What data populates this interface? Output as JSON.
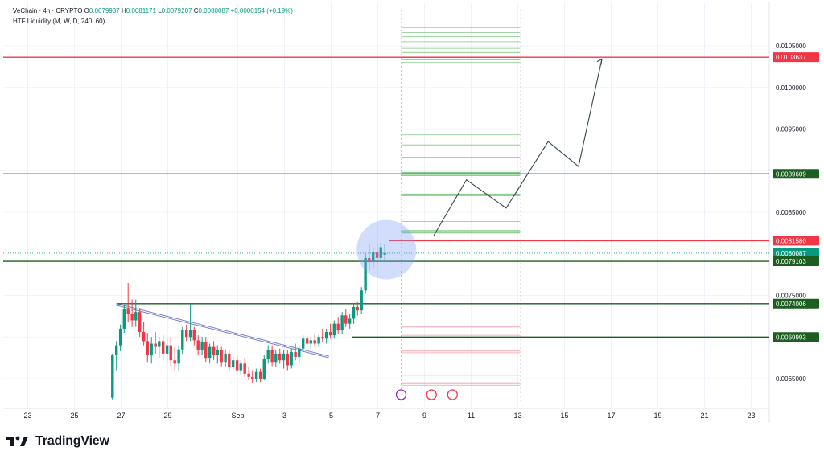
{
  "header": {
    "symbol_line": "VeChain · 4h · CRYPTO",
    "open_label": "O",
    "open": "0.0079937",
    "high_label": "H",
    "high": "0.0081171",
    "low_label": "L",
    "low": "0.0079207",
    "close_label": "C",
    "close": "0.0080087",
    "change": "+0.0000154 (+0.19%)",
    "indicator": "HTF Liquidity (M, W, D, 240, 60)"
  },
  "brand": {
    "name": "TradingView"
  },
  "colors": {
    "up": "#089981",
    "down": "#f23645",
    "bg": "#ffffff",
    "grid": "#f0f3fa",
    "green_line": "#1b5e20",
    "red_line": "#f23645",
    "text": "#131722",
    "circle": "#7b9ff0",
    "trendline": "#5c6bc0"
  },
  "chart_data": {
    "type": "candlestick",
    "title": "VeChain · 4h · CRYPTO",
    "x_ticks": [
      "23",
      "25",
      "27",
      "29",
      "Sep",
      "3",
      "5",
      "7",
      "9",
      "11",
      "13",
      "15",
      "17",
      "19",
      "21",
      "23"
    ],
    "y_ticks": [
      "0.0105000",
      "0.0100000",
      "0.0095000",
      "0.0085000",
      "0.0075000",
      "0.0065000"
    ],
    "ylim": [
      0.0062,
      0.0108
    ],
    "grid": true,
    "price_labels": [
      {
        "value": 0.0103637,
        "text": "0.0103637",
        "color": "#f23645"
      },
      {
        "value": 0.0089609,
        "text": "0.0089609",
        "color": "#1b5e20"
      },
      {
        "value": 0.008158,
        "text": "0.0081580",
        "color": "#f23645"
      },
      {
        "value": 0.0080087,
        "text": "0.0080087",
        "sub": "02:41:21",
        "color": "#089981"
      },
      {
        "value": 0.0079103,
        "text": "0.0079103",
        "color": "#1b5e20"
      },
      {
        "value": 0.0074006,
        "text": "0.0074006",
        "color": "#1b5e20"
      },
      {
        "value": 0.0069993,
        "text": "0.0069993",
        "color": "#1b5e20"
      }
    ],
    "horizontal_levels": [
      {
        "value": 0.0103637,
        "color": "#f23645",
        "from_day": 22.9,
        "to_day": 26.5
      },
      {
        "value": 0.0089609,
        "color": "#1b5e20",
        "from_day": 22.9,
        "to_day": 26.5
      },
      {
        "value": 0.008158,
        "color": "#f23645",
        "from_day": 8.7,
        "to_day": 26.5
      },
      {
        "value": 0.0079103,
        "color": "#1b5e20",
        "from_day": 22.9,
        "to_day": 26.5
      },
      {
        "value": 0.0074006,
        "color": "#1b5e20",
        "from_day": 26.8,
        "to_day": 26.5
      },
      {
        "value": 0.0069993,
        "color": "#1b5e20",
        "from_day": 7.0,
        "to_day": 26.5
      }
    ],
    "liquidity_green": [
      0.01072,
      0.01066,
      0.01061,
      0.01055,
      0.01047,
      0.01042,
      0.01039,
      0.01036,
      0.01033,
      0.0103,
      0.00943,
      0.00931,
      0.00916,
      0.00898,
      0.00896,
      0.00894,
      0.00872,
      0.0087,
      0.00839,
      0.00828,
      0.00825
    ],
    "liquidity_red": [
      0.00718,
      0.00712,
      0.00702,
      0.00694,
      0.00683,
      0.00681,
      0.00654,
      0.00645,
      0.00644,
      0.00642
    ],
    "trendline": {
      "start_day": 26.8,
      "start": 0.00739,
      "end_day": 4.9,
      "end": 0.00676
    },
    "projection": [
      {
        "day": 9.4,
        "value": 0.00822
      },
      {
        "day": 10.8,
        "value": 0.00889
      },
      {
        "day": 12.5,
        "value": 0.00855
      },
      {
        "day": 14.3,
        "value": 0.00935
      },
      {
        "day": 15.6,
        "value": 0.00905
      },
      {
        "day": 16.6,
        "value": 0.01034
      }
    ],
    "candles": [
      {
        "day": 26.63,
        "o": 0.00627,
        "h": 0.0068,
        "l": 0.00625,
        "c": 0.00678
      },
      {
        "day": 26.8,
        "o": 0.00678,
        "h": 0.00695,
        "l": 0.0066,
        "c": 0.0069
      },
      {
        "day": 26.97,
        "o": 0.0069,
        "h": 0.00715,
        "l": 0.00683,
        "c": 0.0071
      },
      {
        "day": 27.13,
        "o": 0.0071,
        "h": 0.00738,
        "l": 0.00705,
        "c": 0.00733
      },
      {
        "day": 27.3,
        "o": 0.00733,
        "h": 0.00765,
        "l": 0.00718,
        "c": 0.00728
      },
      {
        "day": 27.47,
        "o": 0.00728,
        "h": 0.00745,
        "l": 0.00712,
        "c": 0.0072
      },
      {
        "day": 27.63,
        "o": 0.0072,
        "h": 0.00745,
        "l": 0.00712,
        "c": 0.0073
      },
      {
        "day": 27.8,
        "o": 0.0073,
        "h": 0.00735,
        "l": 0.007,
        "c": 0.00706
      },
      {
        "day": 27.97,
        "o": 0.00706,
        "h": 0.00718,
        "l": 0.0069,
        "c": 0.00695
      },
      {
        "day": 28.13,
        "o": 0.00695,
        "h": 0.00705,
        "l": 0.0067,
        "c": 0.00678
      },
      {
        "day": 28.3,
        "o": 0.00678,
        "h": 0.007,
        "l": 0.00668,
        "c": 0.00692
      },
      {
        "day": 28.47,
        "o": 0.00692,
        "h": 0.00706,
        "l": 0.0068,
        "c": 0.00688
      },
      {
        "day": 28.63,
        "o": 0.00688,
        "h": 0.007,
        "l": 0.00675,
        "c": 0.00695
      },
      {
        "day": 28.8,
        "o": 0.00695,
        "h": 0.00702,
        "l": 0.00672,
        "c": 0.0068
      },
      {
        "day": 28.97,
        "o": 0.0068,
        "h": 0.00698,
        "l": 0.0067,
        "c": 0.0069
      },
      {
        "day": 29.13,
        "o": 0.0069,
        "h": 0.007,
        "l": 0.00665,
        "c": 0.00672
      },
      {
        "day": 29.3,
        "o": 0.00672,
        "h": 0.00688,
        "l": 0.0066,
        "c": 0.00668
      },
      {
        "day": 29.47,
        "o": 0.00668,
        "h": 0.0069,
        "l": 0.0066,
        "c": 0.00685
      },
      {
        "day": 29.63,
        "o": 0.00685,
        "h": 0.00712,
        "l": 0.0068,
        "c": 0.00708
      },
      {
        "day": 29.8,
        "o": 0.00708,
        "h": 0.00715,
        "l": 0.00695,
        "c": 0.007
      },
      {
        "day": 29.97,
        "o": 0.007,
        "h": 0.0074,
        "l": 0.00695,
        "c": 0.00708
      },
      {
        "day": 30.13,
        "o": 0.00708,
        "h": 0.00712,
        "l": 0.0069,
        "c": 0.00696
      },
      {
        "day": 30.3,
        "o": 0.00696,
        "h": 0.00702,
        "l": 0.00678,
        "c": 0.00684
      },
      {
        "day": 30.47,
        "o": 0.00684,
        "h": 0.007,
        "l": 0.00678,
        "c": 0.00694
      },
      {
        "day": 30.63,
        "o": 0.00694,
        "h": 0.007,
        "l": 0.0067,
        "c": 0.00675
      },
      {
        "day": 30.8,
        "o": 0.00675,
        "h": 0.00692,
        "l": 0.00668,
        "c": 0.00688
      },
      {
        "day": 30.97,
        "o": 0.00688,
        "h": 0.00695,
        "l": 0.00672,
        "c": 0.00678
      },
      {
        "day": 31.13,
        "o": 0.00678,
        "h": 0.0069,
        "l": 0.00668,
        "c": 0.00684
      },
      {
        "day": 31.3,
        "o": 0.00684,
        "h": 0.00688,
        "l": 0.00665,
        "c": 0.0067
      },
      {
        "day": 31.47,
        "o": 0.0067,
        "h": 0.00685,
        "l": 0.00664,
        "c": 0.0068
      },
      {
        "day": 31.63,
        "o": 0.0068,
        "h": 0.00684,
        "l": 0.0066,
        "c": 0.00664
      },
      {
        "day": 31.8,
        "o": 0.00664,
        "h": 0.00676,
        "l": 0.0066,
        "c": 0.00672
      },
      {
        "day": 31.97,
        "o": 0.00672,
        "h": 0.00678,
        "l": 0.00656,
        "c": 0.0066
      },
      {
        "day": 32.13,
        "o": 0.0066,
        "h": 0.00672,
        "l": 0.00655,
        "c": 0.00668
      },
      {
        "day": 32.3,
        "o": 0.00668,
        "h": 0.00675,
        "l": 0.00652,
        "c": 0.00656
      },
      {
        "day": 32.47,
        "o": 0.00656,
        "h": 0.00664,
        "l": 0.00648,
        "c": 0.00652
      },
      {
        "day": 32.63,
        "o": 0.00652,
        "h": 0.0066,
        "l": 0.00645,
        "c": 0.0065
      },
      {
        "day": 32.8,
        "o": 0.0065,
        "h": 0.00662,
        "l": 0.00646,
        "c": 0.00658
      },
      {
        "day": 32.97,
        "o": 0.00658,
        "h": 0.00662,
        "l": 0.00646,
        "c": 0.0065
      },
      {
        "day": 33.13,
        "o": 0.0065,
        "h": 0.00678,
        "l": 0.00648,
        "c": 0.00674
      },
      {
        "day": 33.3,
        "o": 0.00674,
        "h": 0.0069,
        "l": 0.00668,
        "c": 0.00684
      },
      {
        "day": 33.47,
        "o": 0.00684,
        "h": 0.0069,
        "l": 0.00665,
        "c": 0.0067
      },
      {
        "day": 33.63,
        "o": 0.0067,
        "h": 0.00684,
        "l": 0.00664,
        "c": 0.0068
      },
      {
        "day": 33.8,
        "o": 0.0068,
        "h": 0.00686,
        "l": 0.00668,
        "c": 0.00672
      },
      {
        "day": 33.97,
        "o": 0.00672,
        "h": 0.00684,
        "l": 0.00662,
        "c": 0.0068
      },
      {
        "day": 34.13,
        "o": 0.0068,
        "h": 0.00684,
        "l": 0.0066,
        "c": 0.00666
      },
      {
        "day": 34.3,
        "o": 0.00666,
        "h": 0.00686,
        "l": 0.00662,
        "c": 0.00682
      },
      {
        "day": 34.47,
        "o": 0.00682,
        "h": 0.00692,
        "l": 0.00672,
        "c": 0.00676
      },
      {
        "day": 34.63,
        "o": 0.00676,
        "h": 0.0069,
        "l": 0.0067,
        "c": 0.00686
      },
      {
        "day": 34.8,
        "o": 0.00686,
        "h": 0.00702,
        "l": 0.00682,
        "c": 0.00698
      },
      {
        "day": 34.97,
        "o": 0.00698,
        "h": 0.00702,
        "l": 0.00688,
        "c": 0.00692
      },
      {
        "day": 35.13,
        "o": 0.00692,
        "h": 0.007,
        "l": 0.00686,
        "c": 0.00696
      },
      {
        "day": 35.3,
        "o": 0.00696,
        "h": 0.00704,
        "l": 0.00688,
        "c": 0.00692
      },
      {
        "day": 35.47,
        "o": 0.00692,
        "h": 0.00702,
        "l": 0.00688,
        "c": 0.007
      },
      {
        "day": 35.63,
        "o": 0.007,
        "h": 0.0071,
        "l": 0.00694,
        "c": 0.00698
      },
      {
        "day": 35.8,
        "o": 0.00698,
        "h": 0.0071,
        "l": 0.00692,
        "c": 0.00706
      },
      {
        "day": 35.97,
        "o": 0.00706,
        "h": 0.00716,
        "l": 0.00698,
        "c": 0.00702
      },
      {
        "day": 36.13,
        "o": 0.00702,
        "h": 0.0072,
        "l": 0.00698,
        "c": 0.00716
      },
      {
        "day": 36.3,
        "o": 0.00716,
        "h": 0.00724,
        "l": 0.00704,
        "c": 0.00708
      },
      {
        "day": 36.47,
        "o": 0.00708,
        "h": 0.0073,
        "l": 0.00704,
        "c": 0.00726
      },
      {
        "day": 36.63,
        "o": 0.00726,
        "h": 0.00734,
        "l": 0.00712,
        "c": 0.00716
      },
      {
        "day": 36.8,
        "o": 0.00716,
        "h": 0.00728,
        "l": 0.0071,
        "c": 0.00722
      },
      {
        "day": 36.97,
        "o": 0.00722,
        "h": 0.0074,
        "l": 0.00716,
        "c": 0.00736
      },
      {
        "day": 37.13,
        "o": 0.00736,
        "h": 0.00742,
        "l": 0.00726,
        "c": 0.00732
      },
      {
        "day": 37.3,
        "o": 0.00732,
        "h": 0.0076,
        "l": 0.00728,
        "c": 0.00756
      },
      {
        "day": 37.47,
        "o": 0.00756,
        "h": 0.008,
        "l": 0.00752,
        "c": 0.00795
      },
      {
        "day": 37.63,
        "o": 0.00795,
        "h": 0.00812,
        "l": 0.0078,
        "c": 0.0079
      },
      {
        "day": 37.8,
        "o": 0.0079,
        "h": 0.00808,
        "l": 0.00782,
        "c": 0.00802
      },
      {
        "day": 37.97,
        "o": 0.00802,
        "h": 0.00812,
        "l": 0.00788,
        "c": 0.00795
      },
      {
        "day": 38.13,
        "o": 0.00795,
        "h": 0.00814,
        "l": 0.0079,
        "c": 0.00808
      },
      {
        "day": 38.3,
        "o": 0.00799,
        "h": 0.00812,
        "l": 0.00792,
        "c": 0.00801
      }
    ]
  }
}
